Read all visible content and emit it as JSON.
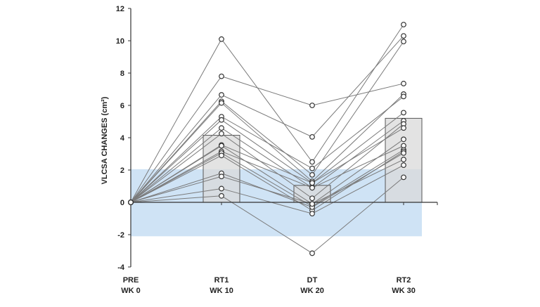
{
  "chart_data": {
    "type": "bar",
    "title": "",
    "xlabel": "",
    "ylabel": "VLCSA CHANGES (cm²)",
    "ylim": [
      -4,
      12
    ],
    "yticks": [
      -4,
      -2,
      0,
      2,
      4,
      6,
      8,
      10,
      12
    ],
    "grid": false,
    "categories": [
      {
        "line1": "PRE",
        "line2": "WK 0"
      },
      {
        "line1": "RT1",
        "line2": "WK 10"
      },
      {
        "line1": "DT",
        "line2": "WK 20"
      },
      {
        "line1": "RT2",
        "line2": "WK 30"
      }
    ],
    "bar_means": [
      null,
      4.15,
      1.05,
      5.2
    ],
    "reference_band": [
      -2.1,
      2.05
    ],
    "colors": {
      "bar": "#d9d9d9",
      "band": "#cfe3f5",
      "line": "#7a7a7a",
      "marker": "#333333"
    },
    "subjects": [
      [
        0,
        10.1,
        2.5,
        11.0
      ],
      [
        0,
        7.8,
        6.0,
        7.35
      ],
      [
        0,
        6.65,
        4.05,
        10.3
      ],
      [
        0,
        6.25,
        1.7,
        9.95
      ],
      [
        0,
        6.15,
        1.3,
        6.7
      ],
      [
        0,
        5.3,
        2.1,
        6.55
      ],
      [
        0,
        5.1,
        1.2,
        5.55
      ],
      [
        0,
        4.6,
        0.9,
        5.05
      ],
      [
        0,
        4.25,
        0.25,
        4.85
      ],
      [
        0,
        3.55,
        1.2,
        4.6
      ],
      [
        0,
        3.5,
        -0.1,
        3.9
      ],
      [
        0,
        3.15,
        0.9,
        3.5
      ],
      [
        0,
        3.05,
        -0.25,
        3.25
      ],
      [
        0,
        2.9,
        -0.5,
        3.15
      ],
      [
        0,
        1.8,
        -0.3,
        3.05
      ],
      [
        0,
        1.6,
        -0.1,
        2.65
      ],
      [
        0,
        0.85,
        -0.7,
        2.3
      ],
      [
        0,
        0.4,
        -3.15,
        1.55
      ]
    ]
  }
}
